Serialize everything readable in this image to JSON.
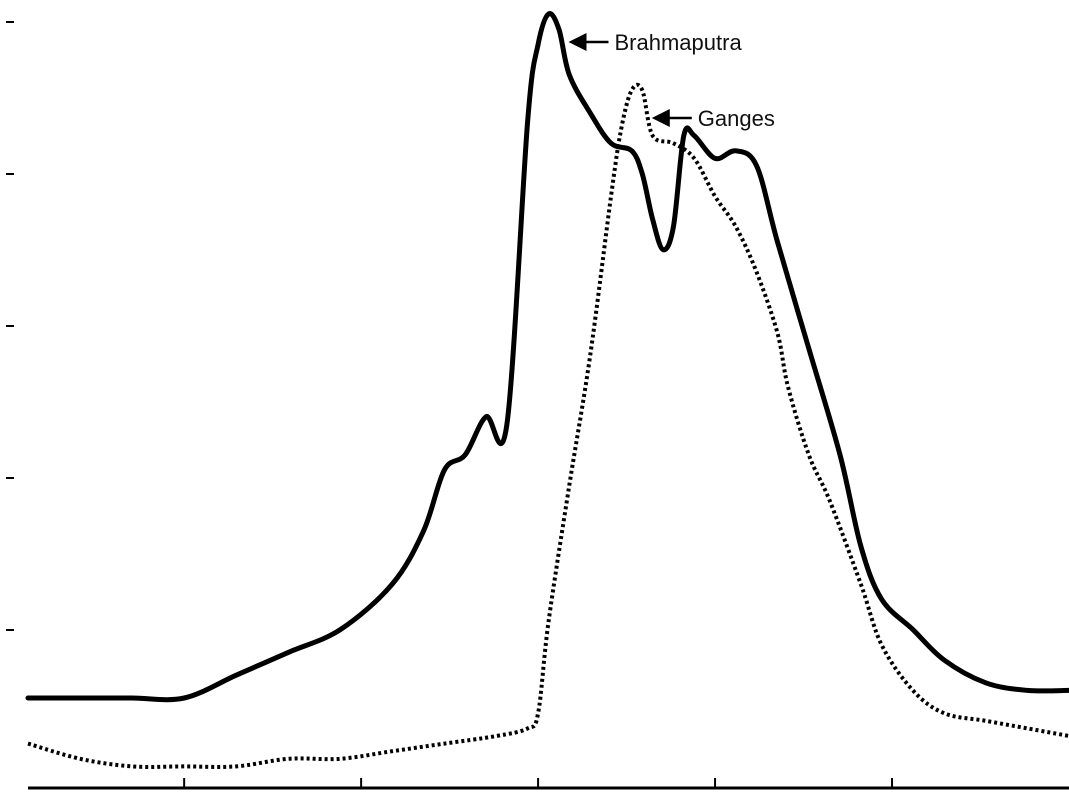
{
  "chart_data": {
    "type": "line",
    "title": "",
    "xlabel": "",
    "ylabel": "",
    "xlim": [
      0,
      100
    ],
    "ylim": [
      0,
      100
    ],
    "grid": false,
    "legend": "none",
    "series": [
      {
        "name": "Brahmaputra",
        "style": "solid",
        "color": "#000000",
        "points": [
          [
            0,
            10
          ],
          [
            5,
            10
          ],
          [
            10,
            10
          ],
          [
            15,
            10
          ],
          [
            20,
            13
          ],
          [
            25,
            16
          ],
          [
            30,
            19
          ],
          [
            35,
            25
          ],
          [
            38,
            32
          ],
          [
            40,
            40
          ],
          [
            42,
            42
          ],
          [
            44,
            47
          ],
          [
            46,
            46
          ],
          [
            48,
            86
          ],
          [
            49,
            96
          ],
          [
            50,
            100
          ],
          [
            51,
            98
          ],
          [
            52,
            92
          ],
          [
            54,
            87
          ],
          [
            56,
            83
          ],
          [
            58,
            82
          ],
          [
            59,
            79
          ],
          [
            60,
            73
          ],
          [
            61,
            69
          ],
          [
            62,
            72
          ],
          [
            63,
            84
          ],
          [
            64,
            84
          ],
          [
            66,
            81
          ],
          [
            68,
            82
          ],
          [
            70,
            80
          ],
          [
            72,
            70
          ],
          [
            75,
            56
          ],
          [
            78,
            42
          ],
          [
            80,
            30
          ],
          [
            82,
            23
          ],
          [
            85,
            19
          ],
          [
            88,
            15
          ],
          [
            92,
            12
          ],
          [
            96,
            11
          ],
          [
            100,
            11
          ]
        ]
      },
      {
        "name": "Ganges",
        "style": "dotted",
        "color": "#000000",
        "points": [
          [
            0,
            4
          ],
          [
            5,
            2
          ],
          [
            10,
            1
          ],
          [
            15,
            1
          ],
          [
            20,
            1
          ],
          [
            25,
            2
          ],
          [
            30,
            2
          ],
          [
            35,
            3
          ],
          [
            40,
            4
          ],
          [
            45,
            5
          ],
          [
            48,
            6
          ],
          [
            49,
            8
          ],
          [
            50,
            20
          ],
          [
            52,
            38
          ],
          [
            54,
            55
          ],
          [
            56,
            76
          ],
          [
            57,
            85
          ],
          [
            58,
            90
          ],
          [
            59,
            90
          ],
          [
            60,
            84
          ],
          [
            62,
            83
          ],
          [
            64,
            81
          ],
          [
            66,
            76
          ],
          [
            68,
            72
          ],
          [
            70,
            66
          ],
          [
            72,
            58
          ],
          [
            73,
            51
          ],
          [
            75,
            42
          ],
          [
            77,
            36
          ],
          [
            80,
            25
          ],
          [
            82,
            17
          ],
          [
            85,
            11
          ],
          [
            88,
            8
          ],
          [
            92,
            7
          ],
          [
            96,
            6
          ],
          [
            100,
            5
          ]
        ]
      }
    ],
    "annotations": [
      {
        "text": "Brahmaputra",
        "target_series": "Brahmaputra",
        "at_x": 51
      },
      {
        "text": "Ganges",
        "target_series": "Ganges",
        "at_x": 59
      }
    ],
    "y_ticks": [
      0,
      20,
      40,
      60,
      80,
      100
    ],
    "x_ticks": [
      15,
      32,
      49,
      66,
      83
    ]
  }
}
